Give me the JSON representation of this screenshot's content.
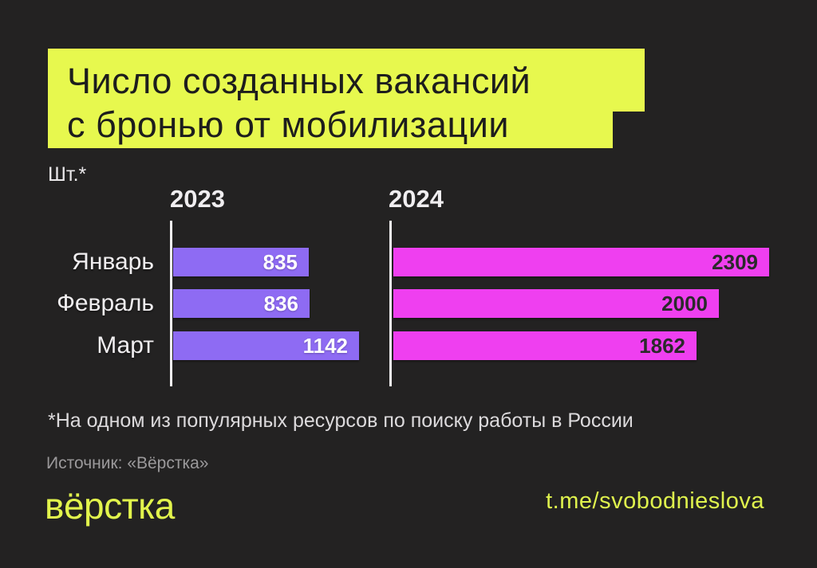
{
  "title": {
    "line1": "Число созданных вакансий",
    "line2": "с бронью от мобилизации"
  },
  "unit_label": "Шт.*",
  "chart_data": {
    "type": "bar",
    "orientation": "horizontal",
    "title": "Число созданных вакансий с бронью от мобилизации",
    "unit": "Шт.",
    "categories": [
      "Январь",
      "Февраль",
      "Март"
    ],
    "series": [
      {
        "name": "2023",
        "color": "#8e6bf3",
        "values": [
          835,
          836,
          1142
        ]
      },
      {
        "name": "2024",
        "color": "#ef3ff0",
        "values": [
          2309,
          2000,
          1862
        ]
      }
    ],
    "xlim": [
      0,
      2309
    ],
    "value_labels": "inside-end",
    "grid": false,
    "legend_position": "column-headers"
  },
  "footnote": "*На одном из популярных ресурсов по поиску работы в России",
  "source": "Источник: «Вёрстка»",
  "footer": {
    "logo_text": "вёрстка",
    "telegram": "t.me/svobodnieslova"
  },
  "colors": {
    "background": "#232222",
    "accent_yellow": "#e7f84e",
    "bar_2023": "#8e6bf3",
    "bar_2024": "#ef3ff0",
    "text_primary": "#f0eef0",
    "text_muted": "#9b999b"
  }
}
